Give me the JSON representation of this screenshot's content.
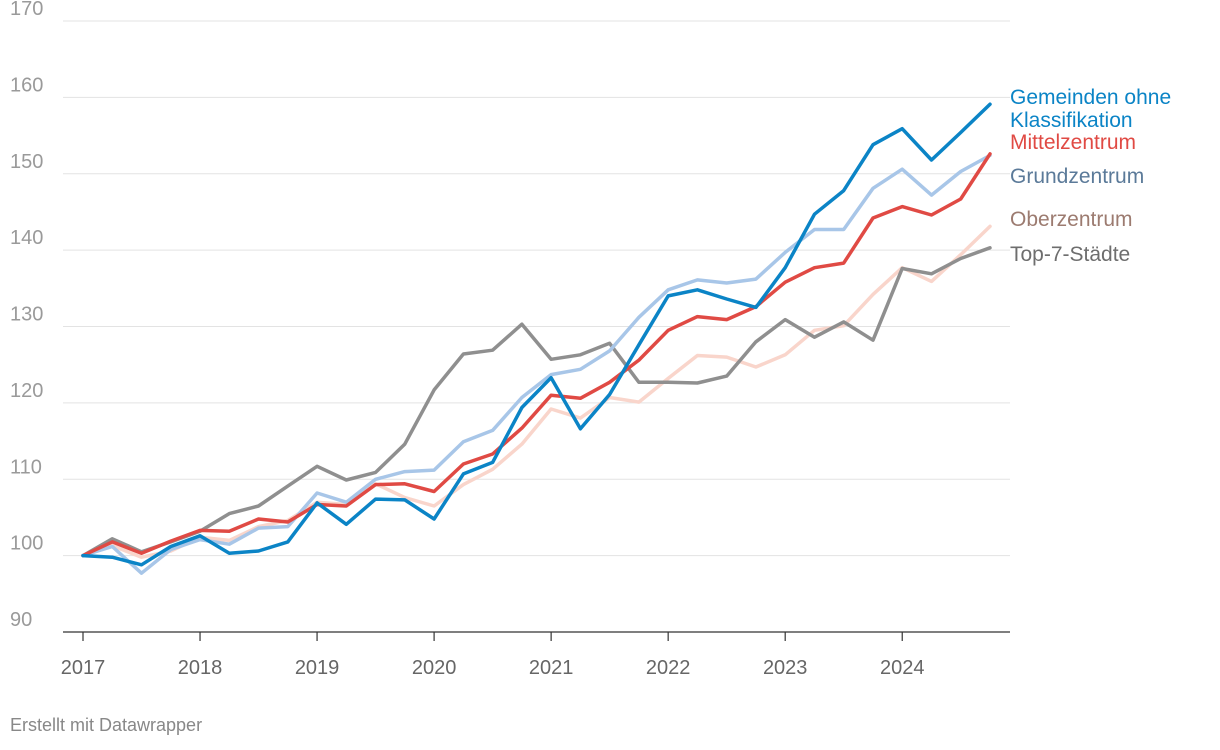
{
  "chart_data": {
    "type": "line",
    "title": "",
    "xlabel": "",
    "ylabel": "",
    "ylim": [
      90,
      170
    ],
    "y_ticks": [
      90,
      100,
      110,
      120,
      130,
      140,
      150,
      160,
      170
    ],
    "x_ticks": [
      "2017",
      "2018",
      "2019",
      "2020",
      "2021",
      "2022",
      "2023",
      "2024"
    ],
    "x_tick_values": [
      2017,
      2018,
      2019,
      2020,
      2021,
      2022,
      2023,
      2024
    ],
    "xlim": [
      2017,
      2024.75
    ],
    "x": [
      2017.0,
      2017.25,
      2017.5,
      2017.75,
      2018.0,
      2018.25,
      2018.5,
      2018.75,
      2019.0,
      2019.25,
      2019.5,
      2019.75,
      2020.0,
      2020.25,
      2020.5,
      2020.75,
      2021.0,
      2021.25,
      2021.5,
      2021.75,
      2022.0,
      2022.25,
      2022.5,
      2022.75,
      2023.0,
      2023.25,
      2023.5,
      2023.75,
      2024.0,
      2024.25,
      2024.5,
      2024.75
    ],
    "grid": true,
    "legend": "direct labels at line ends (right)",
    "series": [
      {
        "name": "Oberzentrum",
        "color": "#f9d5cb",
        "label_color": "#9c7b70",
        "values": [
          100.0,
          101.3,
          99.8,
          100.6,
          102.4,
          102.0,
          103.8,
          104.6,
          107.0,
          106.7,
          109.4,
          107.6,
          106.5,
          109.3,
          111.3,
          114.6,
          119.2,
          118.0,
          120.7,
          120.1,
          123.2,
          126.2,
          126.0,
          124.7,
          126.3,
          129.5,
          130.1,
          134.2,
          137.7,
          135.9,
          139.4,
          143.1
        ]
      },
      {
        "name": "Top-7-Städte",
        "color": "#8f8f8f",
        "label_color": "#6e6e6e",
        "values": [
          100.0,
          102.2,
          100.5,
          101.8,
          103.2,
          105.5,
          106.5,
          109.1,
          111.7,
          109.9,
          110.9,
          114.6,
          121.7,
          126.4,
          126.9,
          130.3,
          125.7,
          126.3,
          127.8,
          122.7,
          122.7,
          122.6,
          123.5,
          128.0,
          130.9,
          128.6,
          130.6,
          128.2,
          137.6,
          136.9,
          138.9,
          140.3
        ]
      },
      {
        "name": "Grundzentrum",
        "color": "#a8c6e8",
        "label_color": "#5b7a99",
        "values": [
          100.0,
          101.2,
          97.7,
          100.8,
          102.1,
          101.5,
          103.6,
          103.8,
          108.2,
          107.0,
          110.0,
          111.0,
          111.2,
          114.9,
          116.4,
          120.7,
          123.7,
          124.4,
          126.8,
          131.2,
          134.8,
          136.1,
          135.7,
          136.2,
          139.7,
          142.7,
          142.7,
          148.1,
          150.6,
          147.2,
          150.3,
          152.4
        ]
      },
      {
        "name": "Mittelzentrum",
        "color": "#e04a44",
        "label_color": "#e04a44",
        "values": [
          100.0,
          101.8,
          100.3,
          101.9,
          103.3,
          103.2,
          104.8,
          104.4,
          106.7,
          106.5,
          109.3,
          109.4,
          108.4,
          112.0,
          113.3,
          116.7,
          121.0,
          120.6,
          122.7,
          125.6,
          129.5,
          131.3,
          130.9,
          132.6,
          135.8,
          137.7,
          138.3,
          144.2,
          145.7,
          144.6,
          146.7,
          152.6
        ]
      },
      {
        "name": "Gemeinden ohne Klassifikation",
        "label_lines": [
          "Gemeinden ohne",
          "Klassifikation"
        ],
        "color": "#0b84c6",
        "label_color": "#0b84c6",
        "values": [
          100.0,
          99.8,
          98.8,
          101.2,
          102.6,
          100.3,
          100.6,
          101.8,
          106.9,
          104.1,
          107.4,
          107.3,
          104.8,
          110.7,
          112.2,
          119.4,
          123.3,
          116.6,
          121.1,
          127.6,
          134.0,
          134.8,
          133.6,
          132.5,
          137.7,
          144.7,
          147.8,
          153.8,
          155.9,
          151.8,
          155.4,
          159.1
        ]
      }
    ]
  },
  "footer": {
    "credit": "Erstellt mit Datawrapper"
  }
}
